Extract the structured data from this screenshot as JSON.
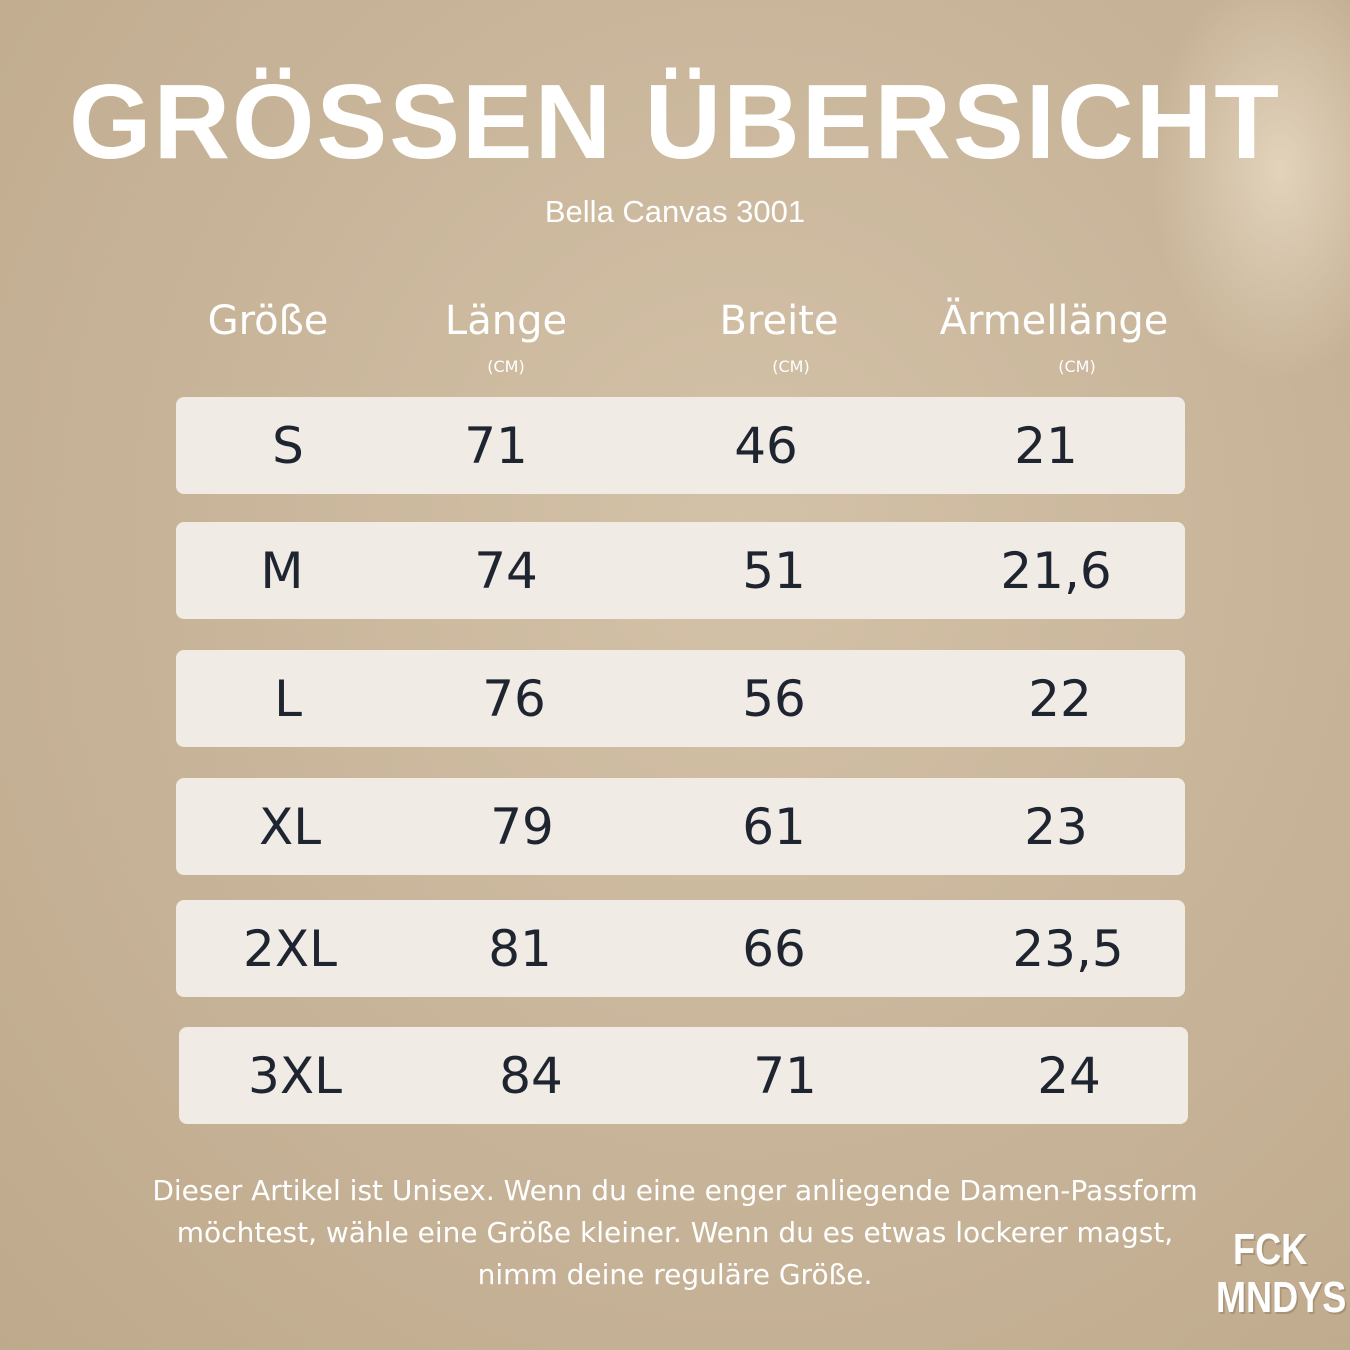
{
  "title": "GRÖSSEN ÜBERSICHT",
  "subtitle": "Bella Canvas 3001",
  "table": {
    "headers": [
      {
        "label": "Größe",
        "unit": ""
      },
      {
        "label": "Länge",
        "unit": "(CM)"
      },
      {
        "label": "Breite",
        "unit": "(CM)"
      },
      {
        "label": "Ärmellänge",
        "unit": "(CM)"
      }
    ],
    "rows": [
      [
        "S",
        "71",
        "46",
        "21"
      ],
      [
        "M",
        "74",
        "51",
        "21,6"
      ],
      [
        "L",
        "76",
        "56",
        "22"
      ],
      [
        "XL",
        "79",
        "61",
        "23"
      ],
      [
        "2XL",
        "81",
        "66",
        "23,5"
      ],
      [
        "3XL",
        "84",
        "71",
        "24"
      ]
    ]
  },
  "note": "Dieser Artikel ist Unisex. Wenn du eine enger anliegende Damen-Passform möchtest, wähle eine Größe kleiner. Wenn du es etwas lockerer magst, nimm deine reguläre Größe.",
  "logo": {
    "line1": "FCK",
    "line2": "MNDYS"
  },
  "colors": {
    "background": "#c9b69b",
    "row": "#f0ebe5",
    "text_dark": "#1f2530",
    "text_light": "#ffffff"
  }
}
